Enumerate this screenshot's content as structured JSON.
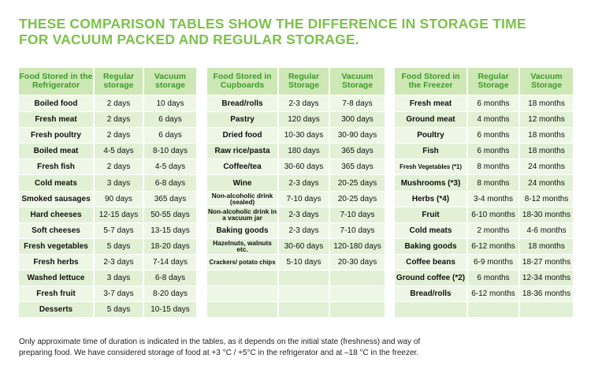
{
  "title": {
    "line1": "THESE COMPARISON TABLES SHOW THE DIFFERENCE IN STORAGE TIME",
    "line2": "FOR VACUUM PACKED AND REGULAR STORAGE."
  },
  "tables": [
    {
      "headers": [
        "Food Stored in the Refrigerator",
        "Regular storage",
        "Vacuum storage"
      ],
      "rows": [
        [
          "Boiled food",
          "2 days",
          "10 days"
        ],
        [
          "Fresh meat",
          "2 days",
          "6 days"
        ],
        [
          "Fresh poultry",
          "2 days",
          "6 days"
        ],
        [
          "Boiled meat",
          "4-5 days",
          "8-10 days"
        ],
        [
          "Fresh fish",
          "2 days",
          "4-5 days"
        ],
        [
          "Cold meats",
          "3 days",
          "6-8 days"
        ],
        [
          "Smoked sausages",
          "90 days",
          "365 days"
        ],
        [
          "Hard cheeses",
          "12-15 days",
          "50-55 days"
        ],
        [
          "Soft cheeses",
          "5-7 days",
          "13-15 days"
        ],
        [
          "Fresh vegetables",
          "5 days",
          "18-20 days"
        ],
        [
          "Fresh herbs",
          "2-3 days",
          "7-14 days"
        ],
        [
          "Washed lettuce",
          "3 days",
          "6-8 days"
        ],
        [
          "Fresh fruit",
          "3-7 days",
          "8-20 days"
        ],
        [
          "Desserts",
          "5 days",
          "10-15 days"
        ]
      ]
    },
    {
      "headers": [
        "Food Stored in Cupboards",
        "Regular Storage",
        "Vacuum Storage"
      ],
      "rows": [
        [
          "Bread/rolls",
          "2-3 days",
          "7-8 days"
        ],
        [
          "Pastry",
          "120 days",
          "300 days"
        ],
        [
          "Dried food",
          "10-30 days",
          "30-90 days"
        ],
        [
          "Raw rice/pasta",
          "180 days",
          "365 days"
        ],
        [
          "Coffee/tea",
          "30-60 days",
          "365 days"
        ],
        [
          "Wine",
          "2-3 days",
          "20-25 days"
        ],
        [
          "Non-alcoholic drink (sealed)",
          "7-10 days",
          "20-25 days"
        ],
        [
          "Non-alcoholic drink in a vacuum jar",
          "2-3 days",
          "7-10 days"
        ],
        [
          "Baking goods",
          "2-3 days",
          "7-10 days"
        ],
        [
          "Hazelnuts, walnuts etc.",
          "30-60 days",
          "120-180 days"
        ],
        [
          "Crackers/ potato chips",
          "5-10 days",
          "20-30 days"
        ],
        [
          "",
          "",
          ""
        ],
        [
          "",
          "",
          ""
        ],
        [
          "",
          "",
          ""
        ]
      ]
    },
    {
      "headers": [
        "Food Stored in the Freezer",
        "Regular Storage",
        "Vacuum Storage"
      ],
      "rows": [
        [
          "Fresh meat",
          "6 months",
          "18 months"
        ],
        [
          "Ground meat",
          "4 months",
          "12 months"
        ],
        [
          "Poultry",
          "6 months",
          "18 months"
        ],
        [
          "Fish",
          "6 months",
          "18 months"
        ],
        [
          "Fresh Vegetables (*1)",
          "8 months",
          "24 months"
        ],
        [
          "Mushrooms (*3)",
          "8 months",
          "24 months"
        ],
        [
          "Herbs (*4)",
          "3-4 months",
          "8-12 months"
        ],
        [
          "Fruit",
          "6-10 months",
          "18-30 months"
        ],
        [
          "Cold meats",
          "2 months",
          "4-6 months"
        ],
        [
          "Baking goods",
          "6-12 months",
          "18 months"
        ],
        [
          "Coffee beans",
          "6-9 months",
          "18-27 months"
        ],
        [
          "Ground coffee (*2)",
          "6 months",
          "12-34 months"
        ],
        [
          "Bread/rolls",
          "6-12 months",
          "18-36 months"
        ],
        [
          "",
          "",
          ""
        ]
      ]
    }
  ],
  "note": {
    "line1": "Only approximate time of duration is indicated in the tables, as it depends on the initial state (freshness) and way of",
    "line2": "preparing food. We have considered storage of food at +3 °C / +5°C in the refrigerator and at –18 °C in the freezer."
  },
  "colors": {
    "title": "#7cc24a",
    "header_bg": "#cde8b5",
    "header_text": "#3f9b2a",
    "row_light": "#eef7e6",
    "row_dark": "#e2f1d6"
  }
}
